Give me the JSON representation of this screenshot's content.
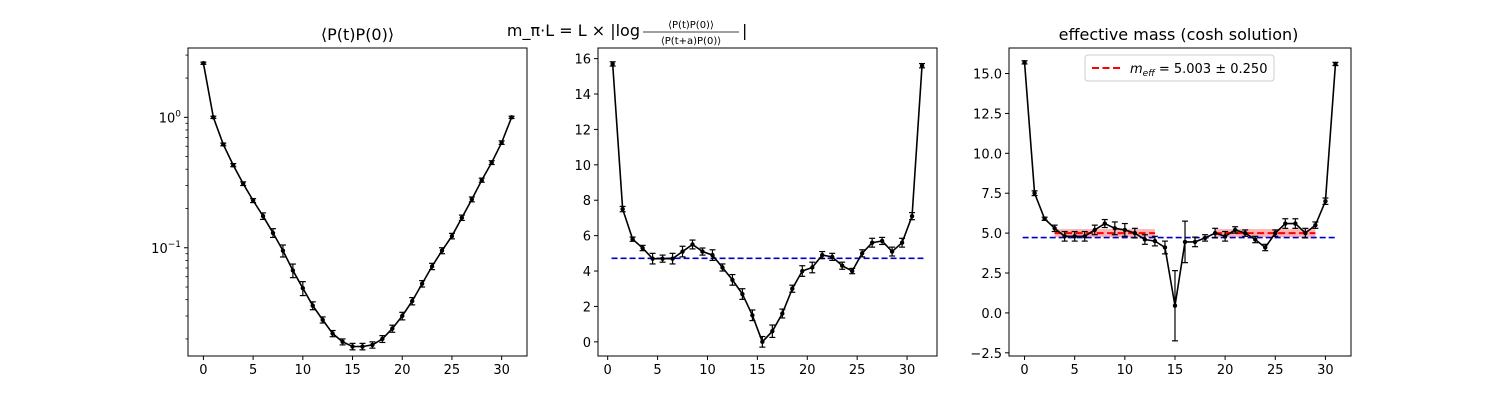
{
  "chart_data": [
    {
      "type": "line",
      "title": "⟨P(t)P(0)⟩",
      "yscale": "log",
      "xlim": [
        -1.55,
        32.55
      ],
      "ylim": [
        0.0148,
        3.4
      ],
      "x_ticks": [
        0,
        5,
        10,
        15,
        20,
        25,
        30
      ],
      "y_ticks": [
        {
          "value": 1,
          "base": "10",
          "exp": "0"
        },
        {
          "value": 0.1,
          "base": "10",
          "exp": "−1"
        }
      ],
      "series": [
        {
          "color": "#000000",
          "x": [
            0,
            1,
            2,
            3,
            4,
            5,
            6,
            7,
            8,
            9,
            10,
            11,
            12,
            13,
            14,
            15,
            16,
            17,
            18,
            19,
            20,
            21,
            22,
            23,
            24,
            25,
            26,
            27,
            28,
            29,
            30,
            31
          ],
          "y": [
            2.6,
            1.0,
            0.62,
            0.43,
            0.31,
            0.23,
            0.175,
            0.13,
            0.095,
            0.067,
            0.049,
            0.036,
            0.028,
            0.022,
            0.019,
            0.0175,
            0.0175,
            0.018,
            0.02,
            0.024,
            0.03,
            0.039,
            0.053,
            0.072,
            0.095,
            0.123,
            0.17,
            0.235,
            0.33,
            0.45,
            0.64,
            1.0
          ],
          "err": [
            0.05,
            0.02,
            0.015,
            0.012,
            0.01,
            0.008,
            0.01,
            0.01,
            0.01,
            0.008,
            0.006,
            0.0025,
            0.0015,
            0.0012,
            0.001,
            0.001,
            0.001,
            0.001,
            0.0012,
            0.0015,
            0.002,
            0.0025,
            0.003,
            0.004,
            0.005,
            0.006,
            0.008,
            0.01,
            0.012,
            0.015,
            0.02,
            0.02
          ]
        }
      ]
    },
    {
      "type": "line",
      "title_parts": {
        "lhs": "m_π·L = L × |log",
        "numerator": "⟨P(t)P(0)⟩",
        "denominator": "⟨P(t+a)P(0)⟩",
        "rhs": "|"
      },
      "xlim": [
        -0.97,
        33.0
      ],
      "ylim": [
        -0.8,
        16.6
      ],
      "x_ticks": [
        0,
        5,
        10,
        15,
        20,
        25,
        30
      ],
      "y_ticks": [
        0,
        2,
        4,
        6,
        8,
        10,
        12,
        14,
        16
      ],
      "series": [
        {
          "color": "#000000",
          "x": [
            0.5,
            1.5,
            2.5,
            3.5,
            4.5,
            5.5,
            6.5,
            7.5,
            8.5,
            9.5,
            10.5,
            11.5,
            12.5,
            13.5,
            14.5,
            15.5,
            16.5,
            17.5,
            18.5,
            19.5,
            20.5,
            21.5,
            22.5,
            23.5,
            24.5,
            25.5,
            26.5,
            27.5,
            28.5,
            29.5,
            30.5,
            31.5
          ],
          "y": [
            15.7,
            7.5,
            5.8,
            5.3,
            4.7,
            4.7,
            4.7,
            5.1,
            5.5,
            5.1,
            4.9,
            4.2,
            3.5,
            2.7,
            1.5,
            0.0,
            0.6,
            1.6,
            3.0,
            4.0,
            4.2,
            4.9,
            4.8,
            4.3,
            4.0,
            5.0,
            5.6,
            5.7,
            5.1,
            5.6,
            7.1,
            15.6
          ],
          "err": [
            0.12,
            0.15,
            0.12,
            0.15,
            0.3,
            0.2,
            0.3,
            0.3,
            0.25,
            0.2,
            0.3,
            0.2,
            0.3,
            0.3,
            0.3,
            0.3,
            0.35,
            0.25,
            0.2,
            0.3,
            0.3,
            0.2,
            0.2,
            0.2,
            0.15,
            0.2,
            0.25,
            0.2,
            0.25,
            0.25,
            0.2,
            0.12
          ]
        }
      ],
      "hline": {
        "y": 4.72,
        "color": "#0000cc",
        "dashed": true
      }
    },
    {
      "type": "line",
      "title": "effective mass (cosh solution)",
      "xlim": [
        -1.55,
        32.55
      ],
      "ylim": [
        -2.7,
        16.6
      ],
      "x_ticks": [
        0,
        5,
        10,
        15,
        20,
        25,
        30
      ],
      "y_ticks": [
        -2.5,
        0.0,
        2.5,
        5.0,
        7.5,
        10.0,
        12.5,
        15.0
      ],
      "y_tick_labels": [
        "−2.5",
        "0.0",
        "2.5",
        "5.0",
        "7.5",
        "10.0",
        "12.5",
        "15.0"
      ],
      "series": [
        {
          "color": "#000000",
          "x": [
            0,
            1,
            2,
            3,
            4,
            5,
            6,
            7,
            8,
            9,
            10,
            11,
            12,
            13,
            14,
            15,
            16,
            17,
            18,
            19,
            20,
            21,
            22,
            23,
            24,
            25,
            26,
            27,
            28,
            29,
            30,
            31
          ],
          "y": [
            15.7,
            7.5,
            5.9,
            5.3,
            4.8,
            4.8,
            4.8,
            5.2,
            5.6,
            5.3,
            5.2,
            5.0,
            4.6,
            4.5,
            4.1,
            0.45,
            4.45,
            4.45,
            4.7,
            5.0,
            4.8,
            5.2,
            5.0,
            4.6,
            4.1,
            5.0,
            5.6,
            5.6,
            5.0,
            5.5,
            7.0,
            15.6
          ],
          "err": [
            0.1,
            0.15,
            0.1,
            0.2,
            0.3,
            0.3,
            0.3,
            0.3,
            0.25,
            0.4,
            0.4,
            0.3,
            0.3,
            0.3,
            0.4,
            2.2,
            1.3,
            0.3,
            0.2,
            0.3,
            0.3,
            0.2,
            0.2,
            0.2,
            0.2,
            0.2,
            0.3,
            0.3,
            0.3,
            0.2,
            0.2,
            0.1
          ]
        }
      ],
      "hline": {
        "y": 4.72,
        "color": "#0000cc",
        "dashed": true
      },
      "fit": {
        "color": "#ff0000",
        "band_color": "#ff9999",
        "value": 5.003,
        "error": 0.25,
        "ranges": [
          [
            3,
            13
          ],
          [
            19,
            29
          ]
        ]
      },
      "legend": {
        "position": "top-center",
        "label_symbol": "m",
        "label_subscript": "eff",
        "label_rest": " = 5.003 ± 0.250"
      }
    }
  ]
}
